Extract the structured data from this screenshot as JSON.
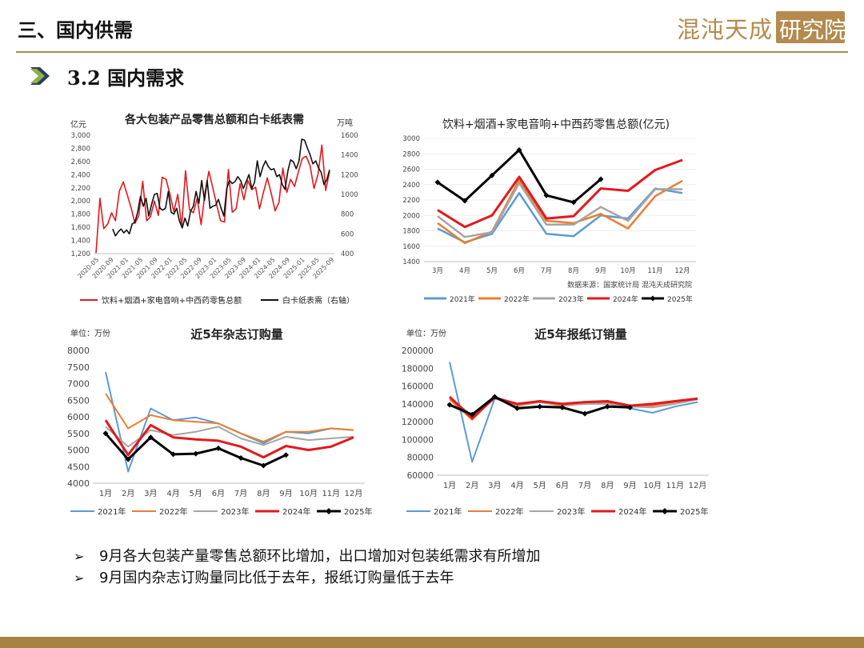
{
  "header": {
    "section_title": "三、国内供需",
    "logo_text": "混沌天成",
    "logo_box_text": "研究院"
  },
  "subheader": {
    "title": "3.2 国内需求"
  },
  "colors": {
    "gold": "#b48a4e",
    "y2021": "#5b9bd5",
    "y2022": "#ed7d31",
    "y2023": "#a5a5a5",
    "y2024": "#e3191c",
    "y2025": "#000000"
  },
  "bullets": [
    "9月各大包装产量零售总额环比增加，出口增加对包装纸需求有所增加",
    "9月国内杂志订购量同比低于去年，报纸订购量低于去年"
  ],
  "chart_data": [
    {
      "id": "chart1",
      "type": "line",
      "title": "各大包装产品零售总额和白卡纸表需",
      "ylabel_left": "亿元",
      "ylabel_right": "万吨",
      "ylim_left": [
        1200,
        3000
      ],
      "ylim_right": [
        400,
        1600
      ],
      "yticks_left": [
        "1,200",
        "1,400",
        "1,600",
        "1,800",
        "2,000",
        "2,200",
        "2,400",
        "2,600",
        "2,800",
        "3,000"
      ],
      "yticks_right": [
        "400",
        "600",
        "800",
        "1000",
        "1200",
        "1400",
        "1600"
      ],
      "x_labels": [
        "2020-05",
        "2020-09",
        "2021-01",
        "2021-05",
        "2021-09",
        "2022-01",
        "2022-05",
        "2022-09",
        "2023-01",
        "2023-05",
        "2023-09",
        "2024-01",
        "2024-05",
        "2024-09",
        "2025-01",
        "2025-05",
        "2025-09"
      ],
      "series": [
        {
          "name": "饮料+烟酒+家电音响+中西药零售总额",
          "axis": "left",
          "values": [
            1210,
            2040,
            1580,
            1650,
            1820,
            1700,
            2150,
            2290,
            2100,
            1900,
            1660,
            1780,
            2300,
            1700,
            1760,
            2000,
            1780,
            2360,
            2330,
            2100,
            1840,
            2100,
            1620,
            2460,
            1870,
            1820,
            2040,
            1640,
            2130,
            2450,
            2200,
            1940,
            1700,
            1680,
            2480,
            1830,
            1880,
            2260,
            2020,
            2310,
            2170,
            2210,
            1880,
            2130,
            2350,
            2120,
            1850,
            1980,
            2500,
            2130,
            2330,
            2220,
            2450,
            2650,
            2680,
            2530,
            2190,
            2400,
            2850,
            2160,
            2450
          ]
        },
        {
          "name": "白卡纸表需（右轴）",
          "axis": "right",
          "values": [
            null,
            null,
            null,
            null,
            null,
            null,
            650,
            580,
            620,
            650,
            610,
            640,
            600,
            700,
            720,
            820,
            980,
            880,
            960,
            780,
            900,
            1000,
            1010,
            860,
            840,
            860,
            1030,
            820,
            800,
            860,
            730,
            660,
            760,
            680,
            830,
            880,
            1030,
            910,
            1140,
            940,
            1140,
            860,
            880,
            890,
            950,
            860,
            780,
            1060,
            1140,
            1110,
            1130,
            1180,
            1140,
            1060,
            1130,
            1200,
            1060,
            1120,
            1340,
            1180,
            1280,
            1340,
            1280,
            1250,
            1260,
            1180,
            1200,
            1100,
            1050,
            1240,
            1350,
            1330,
            1260,
            1340,
            1560,
            1550,
            1470,
            1400,
            1310,
            1340,
            1270,
            1220,
            1100,
            1150,
            1250
          ]
        }
      ]
    },
    {
      "id": "chart2",
      "type": "line",
      "title": "饮料+烟酒+家电音响+中西药零售总额(亿元)",
      "source_note": "数据来源：国家统计局 混沌天成研究院",
      "ylim": [
        1400,
        3000
      ],
      "yticks": [
        "1400",
        "1600",
        "1800",
        "2000",
        "2200",
        "2400",
        "2600",
        "2800",
        "3000"
      ],
      "categories": [
        "3月",
        "4月",
        "5月",
        "6月",
        "7月",
        "8月",
        "9月",
        "10月",
        "11月",
        "12月"
      ],
      "series": [
        {
          "name": "2021年",
          "values": [
            1830,
            1650,
            1760,
            2290,
            1760,
            1730,
            2000,
            1960,
            2350,
            2290
          ]
        },
        {
          "name": "2022年",
          "values": [
            1900,
            1640,
            1790,
            2460,
            1930,
            1900,
            2020,
            1830,
            2250,
            2450
          ]
        },
        {
          "name": "2023年",
          "values": [
            1990,
            1720,
            1780,
            2420,
            1880,
            1880,
            2110,
            1930,
            2340,
            2340
          ]
        },
        {
          "name": "2024年",
          "values": [
            2070,
            1850,
            2000,
            2500,
            1960,
            1990,
            2350,
            2320,
            2590,
            2720
          ]
        },
        {
          "name": "2025年",
          "values": [
            2430,
            2190,
            2520,
            2850,
            2260,
            2170,
            2470,
            null,
            null,
            null
          ]
        }
      ]
    },
    {
      "id": "chart3",
      "type": "line",
      "title": "近5年杂志订购量",
      "unit": "单位：万份",
      "ylim": [
        4000,
        8000
      ],
      "yticks": [
        "4000",
        "4500",
        "5000",
        "5500",
        "6000",
        "6500",
        "7000",
        "7500",
        "8000"
      ],
      "categories": [
        "1月",
        "2月",
        "3月",
        "4月",
        "5月",
        "6月",
        "7月",
        "8月",
        "9月",
        "10月",
        "11月",
        "12月"
      ],
      "series": [
        {
          "name": "2021年",
          "values": [
            7350,
            4350,
            6250,
            5900,
            5980,
            5800,
            5500,
            5200,
            5550,
            5500,
            5650,
            5600
          ]
        },
        {
          "name": "2022年",
          "values": [
            6700,
            5650,
            6050,
            5900,
            5850,
            5800,
            5500,
            5250,
            5550,
            5550,
            5650,
            5600
          ]
        },
        {
          "name": "2023年",
          "values": [
            5700,
            5100,
            5600,
            5450,
            5550,
            5700,
            5350,
            5150,
            5400,
            5300,
            5350,
            5400
          ]
        },
        {
          "name": "2024年",
          "values": [
            5900,
            4850,
            5750,
            5380,
            5320,
            5280,
            5100,
            4780,
            5120,
            5000,
            5100,
            5380
          ]
        },
        {
          "name": "2025年",
          "values": [
            5500,
            4720,
            5380,
            4870,
            4890,
            5050,
            4760,
            4530,
            4850,
            null,
            null,
            null
          ]
        }
      ]
    },
    {
      "id": "chart4",
      "type": "line",
      "title": "近5年报纸订销量",
      "unit": "单位：万份",
      "ylim": [
        60000,
        200000
      ],
      "yticks": [
        "60000",
        "80000",
        "100000",
        "120000",
        "140000",
        "160000",
        "180000",
        "200000"
      ],
      "categories": [
        "1月",
        "2月",
        "3月",
        "4月",
        "5月",
        "6月",
        "7月",
        "8月",
        "9月",
        "10月",
        "11月",
        "12月"
      ],
      "series": [
        {
          "name": "2021年",
          "values": [
            187000,
            75000,
            146000,
            138000,
            142000,
            138000,
            141000,
            142000,
            135000,
            130000,
            137000,
            142000
          ]
        },
        {
          "name": "2022年",
          "values": [
            145000,
            122000,
            148000,
            138000,
            142000,
            138000,
            140000,
            141000,
            138000,
            138000,
            142000,
            146000
          ]
        },
        {
          "name": "2023年",
          "values": [
            147000,
            127000,
            146000,
            139000,
            142000,
            139000,
            140000,
            140000,
            137000,
            136000,
            140000,
            145000
          ]
        },
        {
          "name": "2024年",
          "values": [
            148000,
            124000,
            147000,
            140000,
            143000,
            140000,
            142000,
            143000,
            138000,
            140000,
            143000,
            146000
          ]
        },
        {
          "name": "2025年",
          "values": [
            139000,
            128000,
            148000,
            135000,
            137000,
            136000,
            129000,
            137000,
            136000,
            null,
            null,
            null
          ]
        }
      ]
    }
  ]
}
